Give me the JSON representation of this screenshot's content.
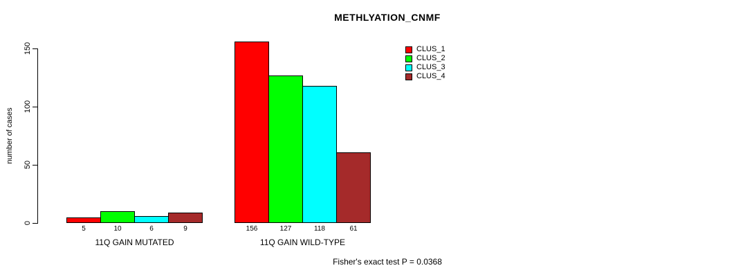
{
  "chart_data": {
    "type": "bar",
    "title": "METHLYATION_CNMF",
    "ylabel": "number of cases",
    "ylim": [
      0,
      150
    ],
    "yticks": [
      0,
      50,
      100,
      150
    ],
    "grid": false,
    "legend_position": "top-right-inside",
    "categories": [
      "11Q GAIN MUTATED",
      "11Q GAIN WILD-TYPE"
    ],
    "series": [
      {
        "name": "CLUS_1",
        "color": "#ff0000",
        "values": [
          5,
          156
        ]
      },
      {
        "name": "CLUS_2",
        "color": "#00ff00",
        "values": [
          10,
          127
        ]
      },
      {
        "name": "CLUS_3",
        "color": "#00ffff",
        "values": [
          6,
          118
        ]
      },
      {
        "name": "CLUS_4",
        "color": "#a52a2a",
        "values": [
          9,
          61
        ]
      }
    ],
    "bar_value_labels": [
      [
        5,
        10,
        6,
        9
      ],
      [
        156,
        127,
        118,
        61
      ]
    ],
    "annotation": "Fisher's exact test P = 0.0368"
  },
  "colors": {
    "background": "#ffffff",
    "axis": "#000000",
    "text": "#000000"
  }
}
